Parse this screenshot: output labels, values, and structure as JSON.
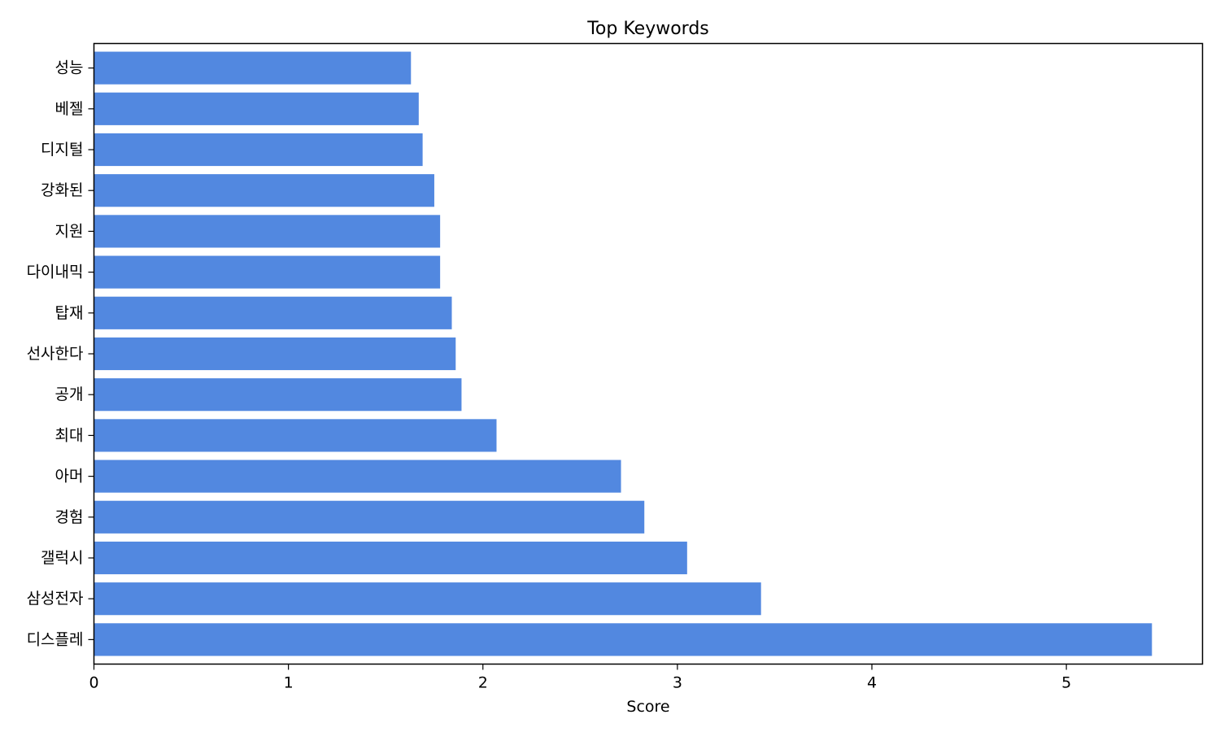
{
  "chart_data": {
    "type": "bar",
    "orientation": "horizontal",
    "title": "Top Keywords",
    "xlabel": "Score",
    "ylabel": "",
    "xlim": [
      0,
      5.7
    ],
    "xticks": [
      0,
      1,
      2,
      3,
      4,
      5
    ],
    "grid": false,
    "bar_color": "#5288e0",
    "categories": [
      "성능",
      "베젤",
      "디지털",
      "강화된",
      "지원",
      "다이내믹",
      "탑재",
      "선사한다",
      "공개",
      "최대",
      "아머",
      "경험",
      "갤럭시",
      "삼성전자",
      "디스플레"
    ],
    "values": [
      1.63,
      1.67,
      1.69,
      1.75,
      1.78,
      1.78,
      1.84,
      1.86,
      1.89,
      2.07,
      2.71,
      2.83,
      3.05,
      3.43,
      5.44
    ]
  }
}
